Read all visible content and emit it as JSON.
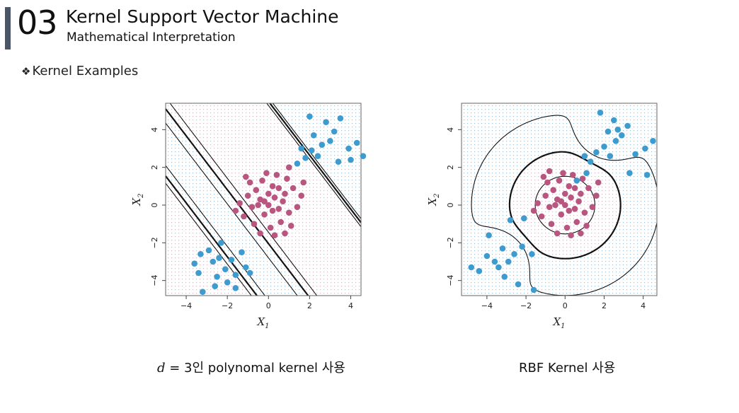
{
  "header": {
    "section_number": "03",
    "title": "Kernel Support Vector Machine",
    "subtitle": "Mathematical Interpretation"
  },
  "bullet": {
    "glyph": "❖",
    "text": "Kernel Examples"
  },
  "colors": {
    "accent_bar": "#4a5566",
    "class_blue": "#3d9bd0",
    "class_pink": "#b8567f"
  },
  "chart_data": [
    {
      "type": "scatter",
      "title": "",
      "xlabel": "X1",
      "ylabel": "X2",
      "xlim": [
        -5,
        4.5
      ],
      "ylim": [
        -4.8,
        5.4
      ],
      "xticks": [
        -4,
        -2,
        0,
        2,
        4
      ],
      "yticks": [
        -4,
        -2,
        0,
        2,
        4
      ],
      "tick_labels": [
        "−4",
        "−2",
        "0",
        "2",
        "4"
      ],
      "series": [
        {
          "values": [
            [
              -1.1,
              -3.3
            ],
            [
              -0.9,
              -3.6
            ],
            [
              -1.6,
              -3.7
            ],
            [
              -2.7,
              -3.0
            ],
            [
              -2.1,
              -3.4
            ],
            [
              -3.3,
              -2.6
            ],
            [
              -3.6,
              -3.1
            ],
            [
              -2.4,
              -2.8
            ],
            [
              -2.9,
              -2.4
            ],
            [
              -3.4,
              -3.6
            ],
            [
              -2.5,
              -3.8
            ],
            [
              -1.8,
              -2.9
            ],
            [
              -2.6,
              -4.3
            ],
            [
              -2.0,
              -4.1
            ],
            [
              -3.2,
              -4.6
            ],
            [
              -2.3,
              -2.0
            ],
            [
              -1.3,
              -2.5
            ],
            [
              -1.6,
              -4.4
            ],
            [
              1.4,
              2.2
            ],
            [
              1.8,
              2.5
            ],
            [
              2.1,
              2.9
            ],
            [
              2.6,
              3.2
            ],
            [
              2.4,
              2.6
            ],
            [
              3.0,
              3.4
            ],
            [
              2.2,
              3.7
            ],
            [
              3.2,
              3.9
            ],
            [
              2.8,
              4.4
            ],
            [
              3.5,
              4.6
            ],
            [
              3.9,
              3.0
            ],
            [
              4.3,
              3.3
            ],
            [
              4.6,
              2.6
            ],
            [
              4.0,
              2.4
            ],
            [
              3.4,
              2.3
            ],
            [
              1.6,
              3.0
            ],
            [
              2.0,
              4.7
            ]
          ]
        },
        {
          "values": [
            [
              0.0,
              0.0
            ],
            [
              0.3,
              0.4
            ],
            [
              -0.4,
              0.3
            ],
            [
              0.5,
              -0.2
            ],
            [
              -0.2,
              -0.5
            ],
            [
              0.8,
              0.6
            ],
            [
              -0.8,
              -0.1
            ],
            [
              0.2,
              1.0
            ],
            [
              -0.6,
              0.8
            ],
            [
              1.0,
              -0.4
            ],
            [
              -1.0,
              0.5
            ],
            [
              0.6,
              -0.9
            ],
            [
              -0.3,
              1.3
            ],
            [
              1.2,
              0.9
            ],
            [
              -1.2,
              -0.6
            ],
            [
              0.1,
              -1.2
            ],
            [
              0.9,
              1.4
            ],
            [
              -0.9,
              1.2
            ],
            [
              1.4,
              -0.1
            ],
            [
              -1.4,
              0.1
            ],
            [
              0.4,
              1.6
            ],
            [
              -0.1,
              1.7
            ],
            [
              1.1,
              -1.1
            ],
            [
              -0.7,
              -1.0
            ],
            [
              0.7,
              0.2
            ],
            [
              -0.5,
              0.0
            ],
            [
              0.2,
              -0.3
            ],
            [
              0.0,
              0.6
            ],
            [
              -0.2,
              0.2
            ],
            [
              0.5,
              0.9
            ],
            [
              1.6,
              0.5
            ],
            [
              -1.6,
              -0.3
            ],
            [
              0.3,
              -1.6
            ],
            [
              0.8,
              -1.5
            ],
            [
              -0.4,
              -1.5
            ],
            [
              1.7,
              1.2
            ],
            [
              -1.1,
              1.5
            ],
            [
              1.0,
              2.0
            ]
          ]
        }
      ],
      "boundary": "degree-3 polynomial"
    },
    {
      "type": "scatter",
      "title": "",
      "xlabel": "X1",
      "ylabel": "X2",
      "xlim": [
        -5.3,
        4.7
      ],
      "ylim": [
        -4.8,
        5.4
      ],
      "xticks": [
        -4,
        -2,
        0,
        2,
        4
      ],
      "yticks": [
        -4,
        -2,
        0,
        2,
        4
      ],
      "tick_labels": [
        "−4",
        "−2",
        "0",
        "2",
        "4"
      ],
      "series": [
        {
          "values": [
            [
              -4.0,
              -2.7
            ],
            [
              -3.6,
              -3.0
            ],
            [
              -3.4,
              -3.3
            ],
            [
              -4.4,
              -3.5
            ],
            [
              -2.9,
              -3.0
            ],
            [
              -3.9,
              -1.6
            ],
            [
              -3.2,
              -2.3
            ],
            [
              -2.6,
              -2.6
            ],
            [
              -4.8,
              -3.3
            ],
            [
              -2.2,
              -2.2
            ],
            [
              -1.7,
              -2.6
            ],
            [
              -2.4,
              -4.2
            ],
            [
              -1.6,
              -4.5
            ],
            [
              -3.1,
              -3.8
            ],
            [
              -2.8,
              -0.8
            ],
            [
              -2.1,
              -0.7
            ],
            [
              0.6,
              1.3
            ],
            [
              1.1,
              1.7
            ],
            [
              1.3,
              2.3
            ],
            [
              1.6,
              2.8
            ],
            [
              2.0,
              3.1
            ],
            [
              2.3,
              2.6
            ],
            [
              2.6,
              3.4
            ],
            [
              2.2,
              3.9
            ],
            [
              2.9,
              3.7
            ],
            [
              3.2,
              4.2
            ],
            [
              2.5,
              4.5
            ],
            [
              1.8,
              4.9
            ],
            [
              3.6,
              2.7
            ],
            [
              4.1,
              3.0
            ],
            [
              4.5,
              3.4
            ],
            [
              4.2,
              1.6
            ],
            [
              3.3,
              1.7
            ],
            [
              1.0,
              2.6
            ],
            [
              2.7,
              4.0
            ]
          ]
        },
        {
          "values": [
            [
              0.0,
              0.0
            ],
            [
              0.3,
              0.4
            ],
            [
              -0.4,
              0.3
            ],
            [
              0.5,
              -0.2
            ],
            [
              -0.2,
              -0.5
            ],
            [
              0.8,
              0.6
            ],
            [
              -0.8,
              -0.1
            ],
            [
              0.2,
              1.0
            ],
            [
              -0.6,
              0.8
            ],
            [
              1.0,
              -0.4
            ],
            [
              -1.0,
              0.5
            ],
            [
              0.6,
              -0.9
            ],
            [
              -0.3,
              1.3
            ],
            [
              1.2,
              0.9
            ],
            [
              -1.2,
              -0.6
            ],
            [
              0.1,
              -1.2
            ],
            [
              0.9,
              1.4
            ],
            [
              -0.9,
              1.2
            ],
            [
              1.4,
              -0.1
            ],
            [
              -1.4,
              0.1
            ],
            [
              0.4,
              1.6
            ],
            [
              -0.1,
              1.7
            ],
            [
              1.1,
              -1.1
            ],
            [
              -0.7,
              -1.0
            ],
            [
              0.7,
              0.2
            ],
            [
              -0.5,
              0.0
            ],
            [
              0.2,
              -0.3
            ],
            [
              0.0,
              0.6
            ],
            [
              -0.2,
              0.2
            ],
            [
              0.5,
              0.9
            ],
            [
              1.6,
              0.5
            ],
            [
              -1.6,
              -0.3
            ],
            [
              0.3,
              -1.6
            ],
            [
              0.8,
              -1.5
            ],
            [
              -0.4,
              -1.5
            ],
            [
              1.7,
              1.2
            ],
            [
              -1.1,
              1.5
            ],
            [
              -0.8,
              1.8
            ]
          ]
        }
      ],
      "boundary": "radial"
    }
  ],
  "captions": {
    "poly_math": "d",
    "poly_eq": " = 3",
    "poly_text": "인 polynomal kernel 사용",
    "rbf": "RBF Kernel 사용"
  }
}
